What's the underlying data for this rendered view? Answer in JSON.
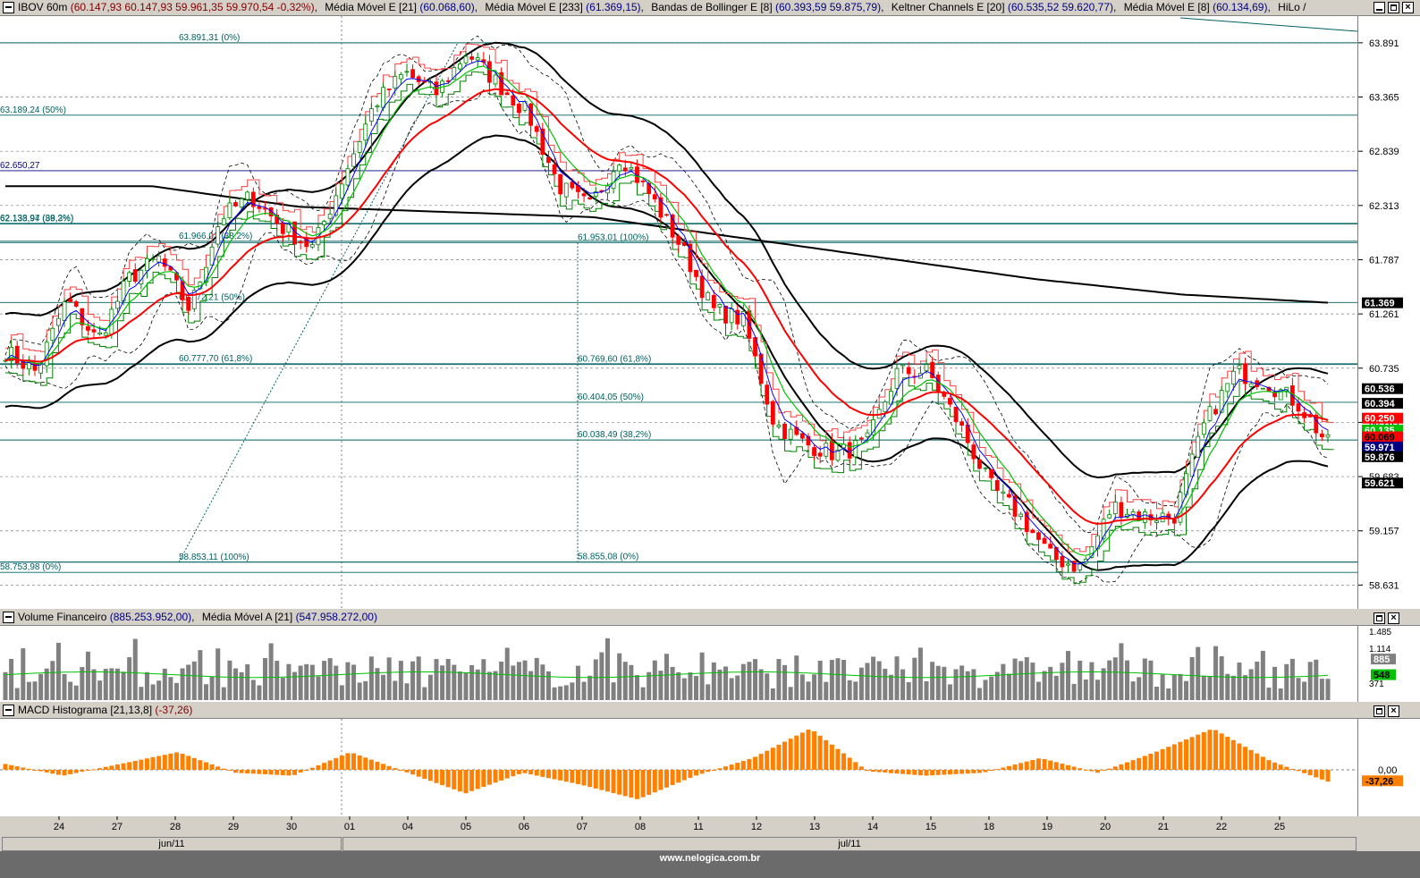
{
  "header_main": {
    "title": "IBOV 60m",
    "ohlc": "(60.147,93  60.147,93  59.961,35  59.970,54  -0,32%)",
    "ma21_label": "Média Móvel E [21]",
    "ma21_val": "(60.068,60)",
    "ma233_label": "Média Móvel E [233]",
    "ma233_val": "(61.369,15)",
    "boll_label": "Bandas de Bollinger E [8]",
    "boll_val": "(60.393,59  59.875,79)",
    "kelt_label": "Keltner Channels E [20]",
    "kelt_val": "(60.535,52  59.620,77)",
    "ma8_label": "Média Móvel E [8]",
    "ma8_val": "(60.134,69)",
    "hilo_label": "HiLo /"
  },
  "header_volume": {
    "title": "Volume Financeiro",
    "val": "(885.253.952,00)",
    "ma_label": "Média Móvel A [21]",
    "ma_val": "(547.958.272,00)"
  },
  "header_macd": {
    "title": "MACD Histograma [21,13,8]",
    "val": "(-37,26)"
  },
  "price_scale": [
    "63.891",
    "63.365",
    "62.839",
    "62.313",
    "61.787",
    "61.261",
    "60.735",
    "60.209",
    "59.683",
    "59.157",
    "58.631"
  ],
  "price_tags": [
    {
      "text": "61.369",
      "bg": "#000000",
      "fg": "#ffffff"
    },
    {
      "text": "60.536",
      "bg": "#000000",
      "fg": "#ffffff"
    },
    {
      "text": "60.394",
      "bg": "#000000",
      "fg": "#ffffff"
    },
    {
      "text": "60.250",
      "bg": "#ff0000",
      "fg": "#ffffff"
    },
    {
      "text": "60.135",
      "bg": "#00c000",
      "fg": "#ffffff"
    },
    {
      "text": "60.069",
      "bg": "#ff0000",
      "fg": "#000000"
    },
    {
      "text": "59.971",
      "bg": "#000080",
      "fg": "#ffffff"
    },
    {
      "text": "59.876",
      "bg": "#000000",
      "fg": "#ffffff"
    },
    {
      "text": "59.621",
      "bg": "#000000",
      "fg": "#ffffff"
    }
  ],
  "fib_labels": [
    "63.891,31 (0%)",
    "63.189,24 (50%)",
    "62.650,27",
    "62.138,94 (38,2%)",
    "62.133,97 (89,3%)",
    "61.966,02 (38,2%)",
    "61.953,01 (100%)",
    "61.372,21 (50%)",
    "60.777,70 (61,8%)",
    "60.769,60 (61,8%)",
    "60.404,05 (50%)",
    "60.038,49 (38,2%)",
    "58.853,11 (100%)",
    "58.855,08 (0%)",
    "58.753,98 (0%)"
  ],
  "volume_scale": [
    "1.485",
    "1.114",
    "371"
  ],
  "volume_tags": [
    {
      "text": "885",
      "bg": "#808080",
      "fg": "#ffffff"
    },
    {
      "text": "548",
      "bg": "#00c000",
      "fg": "#000000"
    }
  ],
  "macd_scale": [
    "0,00"
  ],
  "macd_tag": {
    "text": "-37,26",
    "bg": "#ff8000",
    "fg": "#000000"
  },
  "dates": [
    "24",
    "27",
    "28",
    "29",
    "30",
    "01",
    "04",
    "05",
    "06",
    "07",
    "08",
    "11",
    "12",
    "13",
    "14",
    "15",
    "18",
    "19",
    "20",
    "21",
    "22",
    "25"
  ],
  "months": [
    "jun/11",
    "jul/11"
  ],
  "footer": "www.nelogica.com.br",
  "colors": {
    "ma21": "#ff0000",
    "ma233": "#000000",
    "ma8": "#00c000",
    "bollinger": "#000000",
    "keltner": "#000000",
    "candle_up": "#008000",
    "candle_down": "#ff0000",
    "macd": "#ff8000",
    "volume": "#808080",
    "fib": "#006060",
    "hline": "#000080"
  },
  "chart_data": {
    "type": "candlestick",
    "title": "IBOV 60m",
    "ylim": [
      58.4,
      64.15
    ],
    "close_path": [
      60.9,
      60.7,
      61.4,
      61.0,
      61.6,
      61.8,
      61.3,
      62.2,
      62.4,
      62.1,
      61.9,
      62.6,
      63.3,
      63.6,
      63.4,
      63.8,
      63.5,
      63.2,
      62.5,
      62.3,
      62.8,
      62.4,
      61.9,
      61.3,
      61.2,
      60.2,
      60.0,
      59.9,
      60.0,
      60.7,
      60.7,
      60.2,
      59.6,
      59.3,
      58.9,
      58.8,
      59.4,
      59.3,
      59.3,
      60.2,
      60.7,
      60.6,
      60.4,
      60.0
    ],
    "ma233_path": [
      62.5,
      62.5,
      62.3,
      62.25,
      62.2,
      62.0,
      61.8,
      61.6,
      61.45,
      61.37
    ],
    "ma21_path": [
      61.2,
      61.2,
      61.5,
      61.9,
      62.1,
      62.6,
      63.0,
      63.2,
      63.1,
      62.9,
      62.4,
      61.8,
      61.1,
      60.7,
      60.6,
      60.2,
      59.8,
      59.5,
      59.3,
      59.3,
      59.5,
      60.0,
      60.2,
      60.07
    ],
    "macd_path": [
      20,
      -20,
      20,
      60,
      -10,
      -20,
      60,
      -10,
      -80,
      -10,
      -50,
      -100,
      -20,
      40,
      140,
      -5,
      -20,
      -10,
      40,
      -10,
      60,
      140,
      30,
      -40
    ],
    "volume_avg": 548,
    "volume_max": 1485
  }
}
